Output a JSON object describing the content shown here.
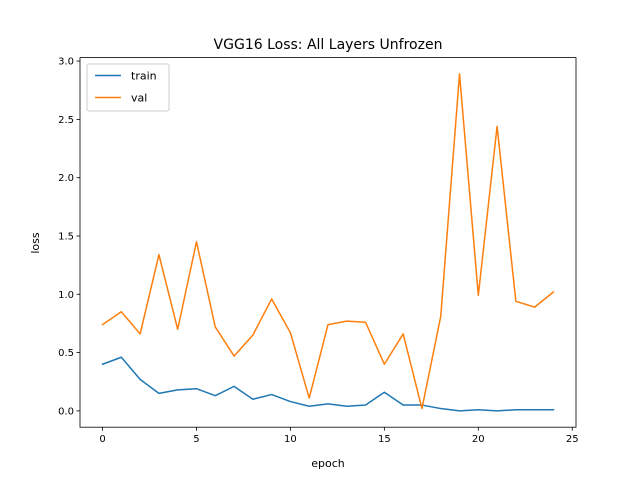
{
  "chart_data": {
    "type": "line",
    "title": "VGG16 Loss: All Layers Unfrozen",
    "xlabel": "epoch",
    "ylabel": "loss",
    "xlim": [
      -1.2,
      25.2
    ],
    "ylim": [
      -0.14,
      3.03
    ],
    "xticks": [
      0,
      5,
      10,
      15,
      20,
      25
    ],
    "xtick_labels": [
      "0",
      "5",
      "10",
      "15",
      "20",
      "25"
    ],
    "yticks": [
      0.0,
      0.5,
      1.0,
      1.5,
      2.0,
      2.5,
      3.0
    ],
    "ytick_labels": [
      "0.0",
      "0.5",
      "1.0",
      "1.5",
      "2.0",
      "2.5",
      "3.0"
    ],
    "grid": false,
    "legend_position": "top-left",
    "x": [
      0,
      1,
      2,
      3,
      4,
      5,
      6,
      7,
      8,
      9,
      10,
      11,
      12,
      13,
      14,
      15,
      16,
      17,
      18,
      19,
      20,
      21,
      22,
      23,
      24
    ],
    "series": [
      {
        "name": "train",
        "color": "#1f77b4",
        "values": [
          0.4,
          0.46,
          0.27,
          0.15,
          0.18,
          0.19,
          0.13,
          0.21,
          0.1,
          0.14,
          0.08,
          0.04,
          0.06,
          0.04,
          0.05,
          0.16,
          0.05,
          0.05,
          0.02,
          0.0,
          0.01,
          0.0,
          0.01,
          0.01,
          0.01
        ]
      },
      {
        "name": "val",
        "color": "#ff7f0e",
        "values": [
          0.74,
          0.85,
          0.66,
          1.34,
          0.7,
          1.45,
          0.72,
          0.47,
          0.65,
          0.96,
          0.67,
          0.11,
          0.74,
          0.77,
          0.76,
          0.4,
          0.66,
          0.02,
          0.81,
          2.89,
          0.99,
          2.44,
          0.94,
          0.89,
          1.02
        ]
      }
    ]
  }
}
